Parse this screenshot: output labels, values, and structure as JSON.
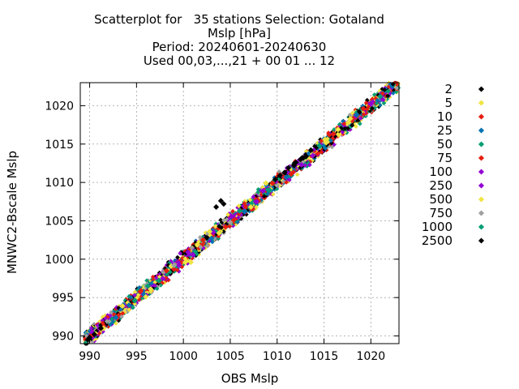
{
  "chart_data": {
    "type": "scatter",
    "title_lines": [
      "Scatterplot for   35 stations Selection: Gotaland",
      "Mslp [hPa]",
      "Period: 20240601-20240630",
      "Used 00,03,...,21 + 00 01 ... 12"
    ],
    "xlabel": "OBS Mslp",
    "ylabel": "MNWC2-Bscale Mslp",
    "xlim": [
      989,
      1023
    ],
    "ylim": [
      989,
      1023
    ],
    "x_ticks": [
      990,
      995,
      1000,
      1005,
      1010,
      1015,
      1020
    ],
    "y_ticks": [
      990,
      995,
      1000,
      1005,
      1010,
      1015,
      1020
    ],
    "grid": true,
    "legend_position": "right",
    "series": [
      {
        "name": "2",
        "color": "#000000",
        "points": [
          [
            1011.2,
            1011.9
          ],
          [
            1012.5,
            1013.0
          ],
          [
            1010.3,
            1010.9
          ],
          [
            1013.1,
            1013.4
          ],
          [
            1004.0,
            1007.6
          ],
          [
            1003.5,
            1006.8
          ],
          [
            1012.0,
            1012.6
          ],
          [
            990.5,
            990.2
          ],
          [
            989.8,
            989.5
          ],
          [
            1009.8,
            1010.4
          ],
          [
            1011.8,
            1012.2
          ],
          [
            1002.5,
            1002.8
          ],
          [
            1014.2,
            1014.6
          ]
        ]
      },
      {
        "name": "5",
        "color": "#f0e442",
        "points": [
          [
            1000.2,
            999.6
          ],
          [
            998.7,
            999.1
          ],
          [
            1003.8,
            1003.4
          ],
          [
            1015.1,
            1015.6
          ],
          [
            996.5,
            996.1
          ],
          [
            1001.5,
            1001.9
          ],
          [
            1007.2,
            1006.8
          ],
          [
            993.5,
            993.9
          ],
          [
            1017.8,
            1018.3
          ]
        ]
      },
      {
        "name": "10",
        "color": "#e51e10",
        "points": [
          [
            1002.1,
            1002.5
          ],
          [
            1005.3,
            1005.0
          ],
          [
            1009.5,
            1009.9
          ],
          [
            999.0,
            998.7
          ],
          [
            1019.2,
            1019.6
          ],
          [
            995.4,
            995.8
          ],
          [
            1008.0,
            1007.6
          ]
        ]
      },
      {
        "name": "25",
        "color": "#0072b2",
        "points": [
          [
            994.2,
            994.0
          ],
          [
            995.8,
            995.4
          ],
          [
            1006.5,
            1006.2
          ],
          [
            1003.0,
            1002.7
          ],
          [
            1018.5,
            1018.8
          ],
          [
            992.8,
            992.4
          ],
          [
            1011.0,
            1010.7
          ]
        ]
      },
      {
        "name": "50",
        "color": "#009e73",
        "points": [
          [
            997.4,
            997.2
          ],
          [
            1006.0,
            1006.3
          ],
          [
            1014.5,
            1014.8
          ],
          [
            994.8,
            994.6
          ],
          [
            1001.2,
            1001.0
          ]
        ]
      },
      {
        "name": "75",
        "color": "#e51e10",
        "points": [
          [
            1004.5,
            1004.2
          ],
          [
            1011.5,
            1011.1
          ],
          [
            998.2,
            998.5
          ],
          [
            1016.0,
            1016.3
          ]
        ]
      },
      {
        "name": "100",
        "color": "#9400d3",
        "points": [
          [
            999.5,
            999.2
          ],
          [
            1001.0,
            1000.6
          ],
          [
            1008.5,
            1008.9
          ],
          [
            1013.8,
            1013.5
          ],
          [
            1020.0,
            1020.2
          ],
          [
            997.8,
            997.5
          ]
        ]
      },
      {
        "name": "250",
        "color": "#9400d3",
        "points": [
          [
            1003.2,
            1003.5
          ],
          [
            1007.8,
            1007.5
          ],
          [
            1012.6,
            1012.3
          ],
          [
            1000.5,
            1000.9
          ]
        ]
      },
      {
        "name": "500",
        "color": "#f0e442",
        "points": [
          [
            996.0,
            995.1
          ],
          [
            1000.8,
            999.6
          ],
          [
            1008.8,
            1009.9
          ],
          [
            1016.5,
            1016.9
          ],
          [
            1002.8,
            1003.6
          ],
          [
            991.5,
            991.0
          ]
        ]
      },
      {
        "name": "750",
        "color": "#a0a0a0",
        "points": [
          [
            999.0,
            999.2
          ],
          [
            1005.0,
            1004.8
          ]
        ]
      },
      {
        "name": "1000",
        "color": "#009e73",
        "points": [
          [
            996.2,
            996.5
          ],
          [
            1009.2,
            1009.0
          ],
          [
            1021.0,
            1021.2
          ]
        ]
      },
      {
        "name": "2500",
        "color": "#000000",
        "points": [
          [
            990.0,
            989.8
          ],
          [
            991.2,
            991.0
          ],
          [
            1010.8,
            1011.3
          ],
          [
            1012.8,
            1013.2
          ],
          [
            1004.3,
            1007.2
          ],
          [
            1013.6,
            1014.2
          ]
        ]
      }
    ]
  }
}
